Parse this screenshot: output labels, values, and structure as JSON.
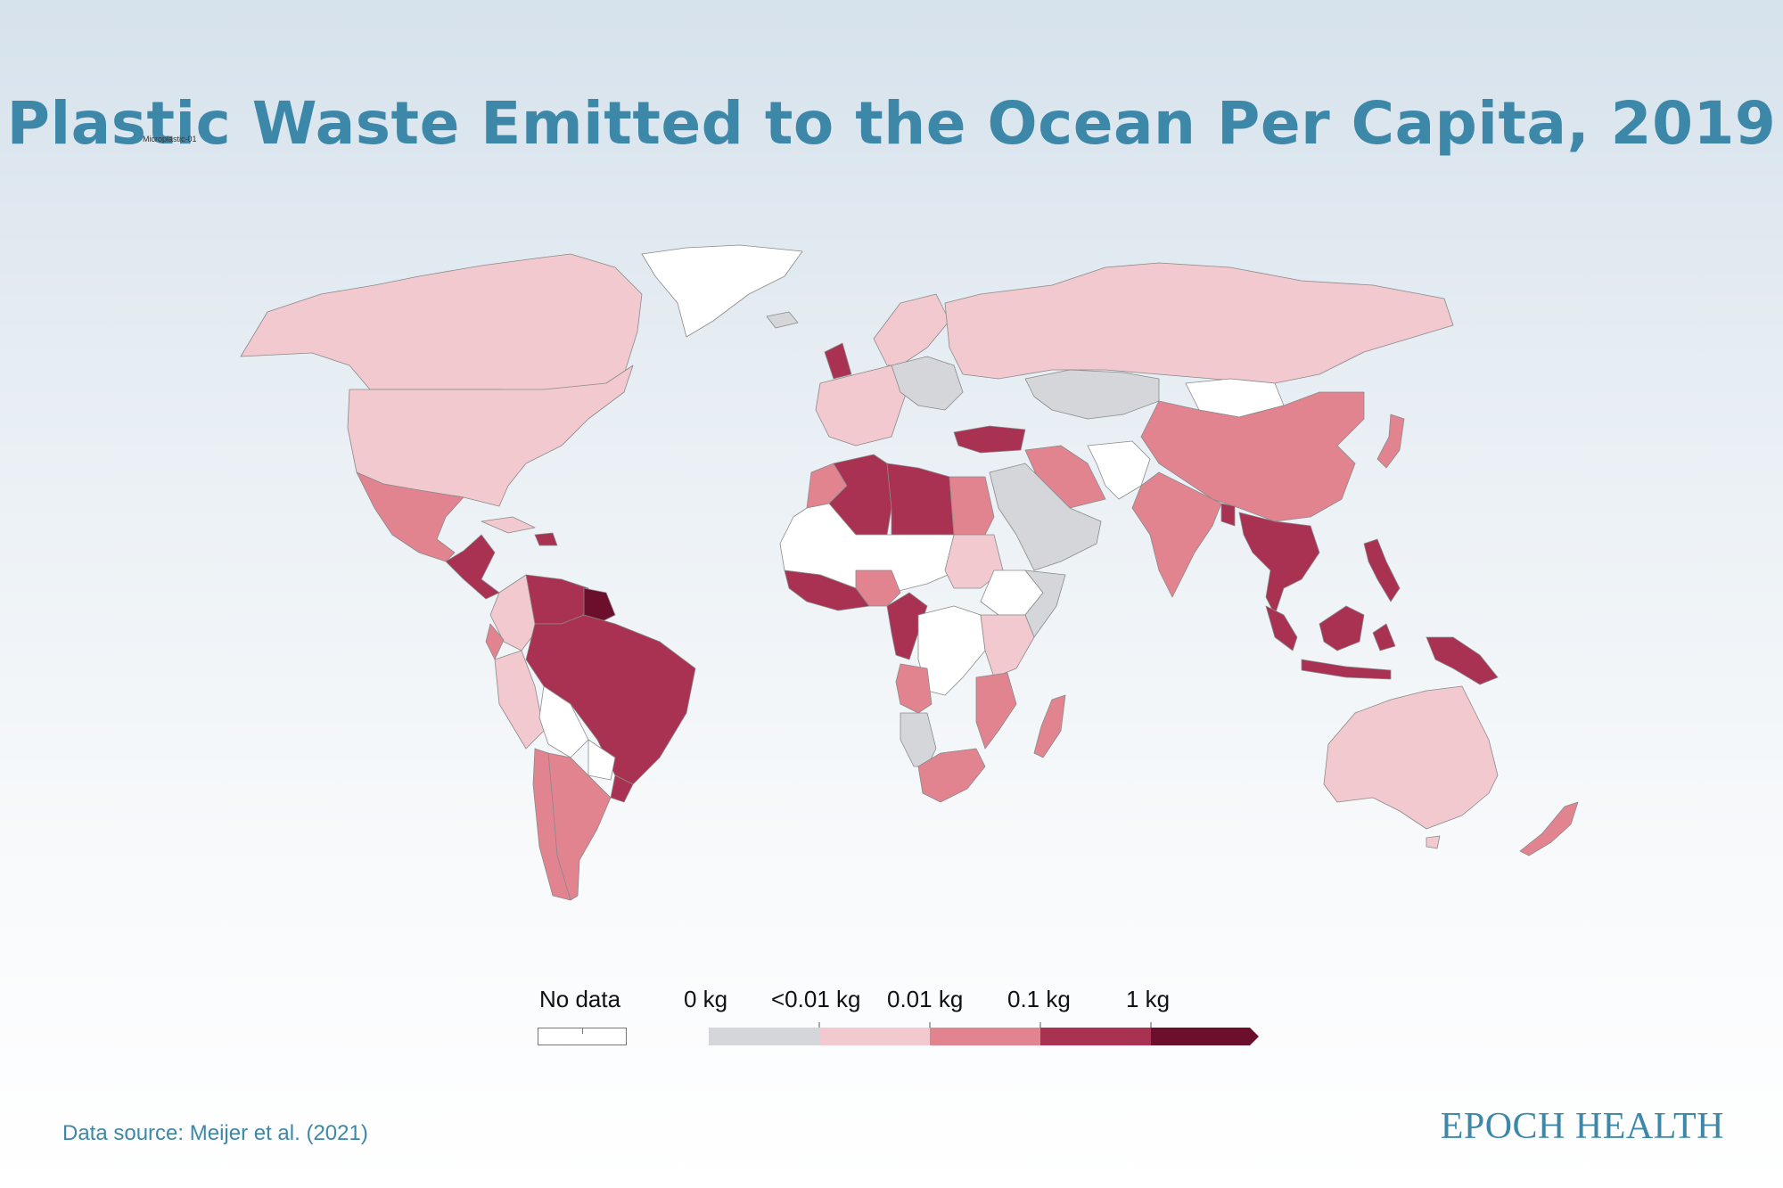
{
  "title": "Plastic Waste Emitted to the Ocean Per Capita, 2019",
  "watermark": "Microplastic-01",
  "legend": {
    "no_data_label": "No data",
    "bins": [
      {
        "label": "0 kg",
        "color": "#d4d6d9"
      },
      {
        "label": "<0.01 kg",
        "color": "#f1c9cf"
      },
      {
        "label": "0.01 kg",
        "color": "#e2848f"
      },
      {
        "label": "0.1 kg",
        "color": "#a93152"
      },
      {
        "label": "1 kg",
        "color": "#6b0f2c"
      }
    ],
    "no_data_color": "#ffffff"
  },
  "source": "Data source: Meijer et al. (2021)",
  "brand": "EPOCH HEALTH",
  "categories": {
    "canada": "<0.01 kg",
    "usa": "<0.01 kg",
    "greenland": "No data",
    "mexico": "0.01 kg",
    "central_america": "0.1 kg",
    "cuba": "<0.01 kg",
    "hispaniola": "0.1 kg",
    "colombia": "<0.01 kg",
    "venezuela": "0.1 kg",
    "guianas": "1 kg",
    "brazil": "0.1 kg",
    "ecuador": "0.01 kg",
    "peru": "<0.01 kg",
    "bolivia": "No data",
    "paraguay": "No data",
    "chile": "0.01 kg",
    "argentina": "0.01 kg",
    "uruguay": "0.1 kg",
    "uk": "0.1 kg",
    "iceland": "0 kg",
    "scandinavia": "<0.01 kg",
    "western_europe": "<0.01 kg",
    "central_europe": "0 kg",
    "russia": "<0.01 kg",
    "kazakhstan": "0 kg",
    "mongolia": "No data",
    "china": "0.01 kg",
    "japan": "0.01 kg",
    "turkey": "0.1 kg",
    "iran": "0.01 kg",
    "arabia": "0 kg",
    "india": "0.01 kg",
    "pakistan_afg": "No data",
    "bangladesh": "0.1 kg",
    "mainland_se_asia": "0.1 kg",
    "philippines": "0.1 kg",
    "indonesia": "0.1 kg",
    "png": "0.1 kg",
    "australia": "<0.01 kg",
    "new_zealand": "0.01 kg",
    "morocco": "0.01 kg",
    "algeria": "0.1 kg",
    "libya": "0.1 kg",
    "egypt": "0.01 kg",
    "sahel": "No data",
    "west_africa_coast": "0.1 kg",
    "nigeria": "0.01 kg",
    "central_africa_coast": "0.1 kg",
    "sudan": "<0.01 kg",
    "ethiopia": "No data",
    "somalia": "0 kg",
    "kenya_tanzania": "<0.01 kg",
    "angola": "0.01 kg",
    "namibia": "0 kg",
    "mozambique": "0.01 kg",
    "south_africa": "0.01 kg",
    "madagascar": "0.01 kg",
    "zambia": "No data"
  }
}
